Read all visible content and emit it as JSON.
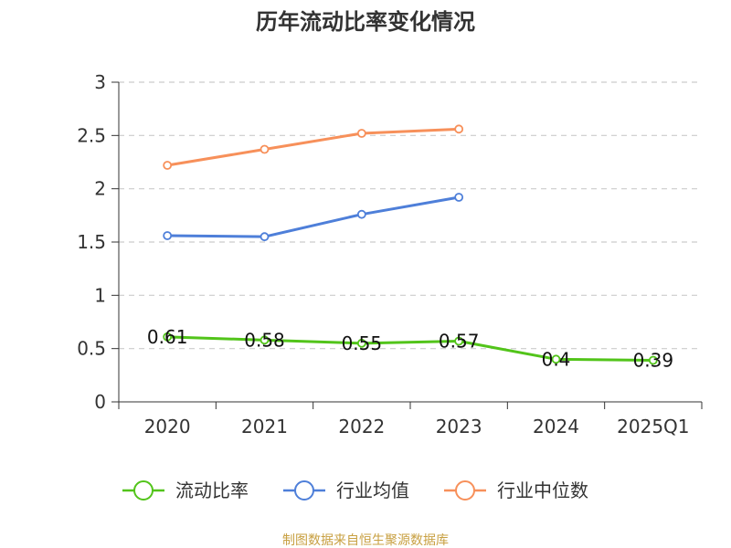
{
  "chart_data": {
    "type": "line",
    "title": "历年流动比率变化情况",
    "categories": [
      "2020",
      "2021",
      "2022",
      "2023",
      "2024",
      "2025Q1"
    ],
    "ylim": [
      0,
      3
    ],
    "yticks": [
      "0",
      "0.5",
      "1",
      "1.5",
      "2",
      "2.5",
      "3"
    ],
    "grid": true,
    "legend_position": "bottom",
    "series": [
      {
        "name": "流动比率",
        "color": "#52c41a",
        "values": [
          0.61,
          0.58,
          0.55,
          0.57,
          0.4,
          0.39
        ],
        "labels": [
          "0.61",
          "0.58",
          "0.55",
          "0.57",
          "0.4",
          "0.39"
        ]
      },
      {
        "name": "行业均值",
        "color": "#4e7fd9",
        "values": [
          1.56,
          1.55,
          1.76,
          1.92,
          null,
          null
        ]
      },
      {
        "name": "行业中位数",
        "color": "#f7905a",
        "values": [
          2.22,
          2.37,
          2.52,
          2.56,
          null,
          null
        ]
      }
    ],
    "source": "制图数据来自恒生聚源数据库"
  }
}
